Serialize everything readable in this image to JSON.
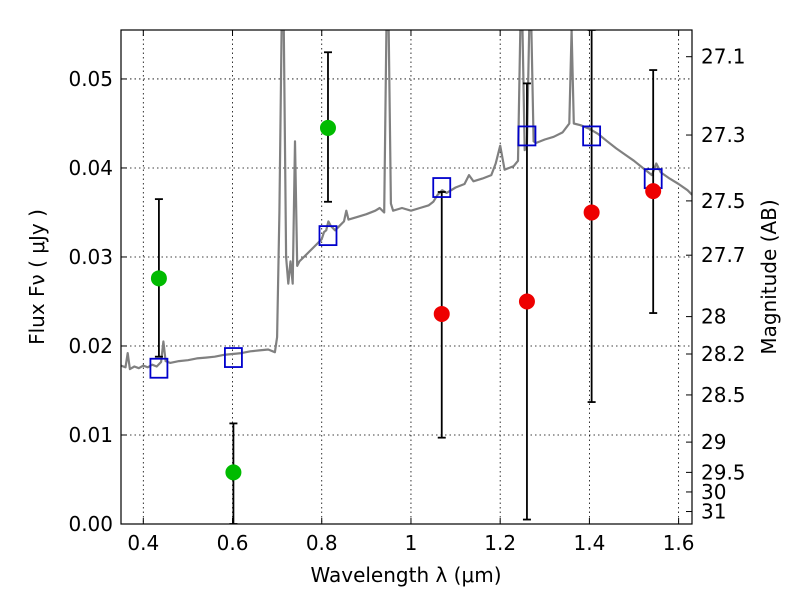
{
  "chart_data": {
    "type": "scatter",
    "xlabel": "Wavelength  λ (μm)",
    "ylabel": "Flux  Fν  ( μJy )",
    "y2label": "Magnitude (AB)",
    "xlim": [
      0.35,
      1.63
    ],
    "ylim": [
      0.0,
      0.0555
    ],
    "xticks": [
      0.4,
      0.6,
      0.8,
      1.0,
      1.2,
      1.4,
      1.6
    ],
    "xtick_labels": [
      "0.4",
      "0.6",
      "0.8",
      "1",
      "1.2",
      "1.4",
      "1.6"
    ],
    "yticks": [
      0.0,
      0.01,
      0.02,
      0.03,
      0.04,
      0.05
    ],
    "ytick_labels": [
      "0.00",
      "0.01",
      "0.02",
      "0.03",
      "0.04",
      "0.05"
    ],
    "y2ticks": [
      {
        "label": "27.1",
        "flux": 0.0525
      },
      {
        "label": "27.3",
        "flux": 0.0437
      },
      {
        "label": "27.5",
        "flux": 0.0363
      },
      {
        "label": "27.7",
        "flux": 0.0302
      },
      {
        "label": "28",
        "flux": 0.0233
      },
      {
        "label": "28.2",
        "flux": 0.0191
      },
      {
        "label": "28.5",
        "flux": 0.0145
      },
      {
        "label": "29",
        "flux": 0.0092
      },
      {
        "label": "29.5",
        "flux": 0.0058
      },
      {
        "label": "30",
        "flux": 0.0036
      },
      {
        "label": "31",
        "flux": 0.0014
      }
    ],
    "grid": true,
    "series": [
      {
        "style": "line",
        "color": "#808080",
        "points": [
          [
            0.35,
            0.0178
          ],
          [
            0.36,
            0.0176
          ],
          [
            0.365,
            0.0192
          ],
          [
            0.37,
            0.0174
          ],
          [
            0.38,
            0.0177
          ],
          [
            0.39,
            0.0175
          ],
          [
            0.4,
            0.0178
          ],
          [
            0.41,
            0.0176
          ],
          [
            0.42,
            0.0179
          ],
          [
            0.43,
            0.0177
          ],
          [
            0.44,
            0.0182
          ],
          [
            0.445,
            0.0205
          ],
          [
            0.45,
            0.0183
          ],
          [
            0.46,
            0.0181
          ],
          [
            0.48,
            0.0183
          ],
          [
            0.5,
            0.0184
          ],
          [
            0.52,
            0.0186
          ],
          [
            0.54,
            0.0187
          ],
          [
            0.56,
            0.0188
          ],
          [
            0.58,
            0.019
          ],
          [
            0.6,
            0.0191
          ],
          [
            0.62,
            0.0192
          ],
          [
            0.64,
            0.0194
          ],
          [
            0.66,
            0.0195
          ],
          [
            0.68,
            0.0196
          ],
          [
            0.695,
            0.0193
          ],
          [
            0.7,
            0.021
          ],
          [
            0.705,
            0.035
          ],
          [
            0.71,
            0.0555
          ],
          [
            0.715,
            0.0555
          ],
          [
            0.72,
            0.03
          ],
          [
            0.725,
            0.027
          ],
          [
            0.73,
            0.0295
          ],
          [
            0.735,
            0.027
          ],
          [
            0.74,
            0.043
          ],
          [
            0.745,
            0.029
          ],
          [
            0.75,
            0.0295
          ],
          [
            0.76,
            0.03
          ],
          [
            0.77,
            0.0305
          ],
          [
            0.78,
            0.031
          ],
          [
            0.79,
            0.0315
          ],
          [
            0.8,
            0.032
          ],
          [
            0.805,
            0.0328
          ],
          [
            0.81,
            0.033
          ],
          [
            0.815,
            0.034
          ],
          [
            0.82,
            0.0335
          ],
          [
            0.83,
            0.033
          ],
          [
            0.84,
            0.0335
          ],
          [
            0.85,
            0.034
          ],
          [
            0.855,
            0.0352
          ],
          [
            0.86,
            0.0342
          ],
          [
            0.88,
            0.0345
          ],
          [
            0.9,
            0.0348
          ],
          [
            0.92,
            0.0352
          ],
          [
            0.93,
            0.0355
          ],
          [
            0.94,
            0.035
          ],
          [
            0.945,
            0.0555
          ],
          [
            0.95,
            0.0555
          ],
          [
            0.955,
            0.036
          ],
          [
            0.96,
            0.0352
          ],
          [
            0.98,
            0.0355
          ],
          [
            1.0,
            0.0352
          ],
          [
            1.02,
            0.0355
          ],
          [
            1.04,
            0.0358
          ],
          [
            1.05,
            0.0362
          ],
          [
            1.06,
            0.037
          ],
          [
            1.07,
            0.0375
          ],
          [
            1.08,
            0.0372
          ],
          [
            1.1,
            0.0378
          ],
          [
            1.12,
            0.0382
          ],
          [
            1.13,
            0.0392
          ],
          [
            1.14,
            0.0385
          ],
          [
            1.16,
            0.0388
          ],
          [
            1.18,
            0.0392
          ],
          [
            1.19,
            0.0405
          ],
          [
            1.2,
            0.0425
          ],
          [
            1.21,
            0.0398
          ],
          [
            1.23,
            0.0402
          ],
          [
            1.24,
            0.0408
          ],
          [
            1.245,
            0.0555
          ],
          [
            1.25,
            0.0555
          ],
          [
            1.255,
            0.042
          ],
          [
            1.26,
            0.0425
          ],
          [
            1.265,
            0.0555
          ],
          [
            1.27,
            0.0555
          ],
          [
            1.275,
            0.043
          ],
          [
            1.28,
            0.0428
          ],
          [
            1.3,
            0.0432
          ],
          [
            1.32,
            0.0435
          ],
          [
            1.34,
            0.044
          ],
          [
            1.355,
            0.045
          ],
          [
            1.36,
            0.0555
          ],
          [
            1.365,
            0.045
          ],
          [
            1.38,
            0.0448
          ],
          [
            1.4,
            0.0444
          ],
          [
            1.42,
            0.0438
          ],
          [
            1.44,
            0.043
          ],
          [
            1.46,
            0.0422
          ],
          [
            1.48,
            0.0415
          ],
          [
            1.5,
            0.0408
          ],
          [
            1.52,
            0.04
          ],
          [
            1.54,
            0.0392
          ],
          [
            1.55,
            0.0405
          ],
          [
            1.56,
            0.0395
          ],
          [
            1.58,
            0.0388
          ],
          [
            1.6,
            0.0382
          ],
          [
            1.62,
            0.0375
          ],
          [
            1.63,
            0.037
          ]
        ]
      },
      {
        "style": "open-square",
        "color": "#0000cc",
        "x": [
          0.435,
          0.602,
          0.814,
          1.069,
          1.26,
          1.405,
          1.543
        ],
        "y": [
          0.0175,
          0.0187,
          0.0324,
          0.0378,
          0.0436,
          0.0436,
          0.0388
        ]
      },
      {
        "style": "filled-circle",
        "color": "#00bb00",
        "x": [
          0.435,
          0.602,
          0.814
        ],
        "y": [
          0.0276,
          0.0058,
          0.0445
        ],
        "yerr_low": [
          0.0188,
          0.0,
          0.0362
        ],
        "yerr_high": [
          0.0365,
          0.0113,
          0.053
        ]
      },
      {
        "style": "filled-circle",
        "color": "#ee0000",
        "x": [
          1.069,
          1.26,
          1.405,
          1.543
        ],
        "y": [
          0.0236,
          0.025,
          0.035,
          0.0374
        ],
        "yerr_low": [
          0.0097,
          0.0005,
          0.0137,
          0.0237
        ],
        "yerr_high": [
          0.0373,
          0.0495,
          0.0555,
          0.051
        ]
      }
    ]
  }
}
